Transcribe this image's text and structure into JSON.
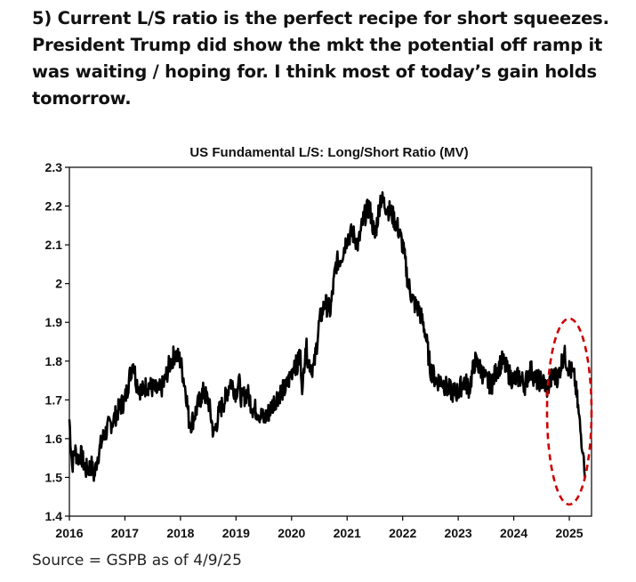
{
  "post": {
    "text": "5) Current L/S ratio is the perfect recipe for short squeezes. President Trump did show the mkt the potential off ramp it was waiting / hoping for. I think most of today’s gain holds tomorrow."
  },
  "source": "Source = GSPB as of 4/9/25",
  "colors": {
    "line": "#000000",
    "annotation": "#cc0000",
    "axis": "#000000"
  },
  "chart_data": {
    "type": "line",
    "title": "US Fundamental L/S: Long/Short Ratio (MV)",
    "xlabel": "",
    "ylabel": "",
    "xlim": [
      2016.0,
      2025.4
    ],
    "ylim": [
      1.4,
      2.3
    ],
    "x_ticks": [
      2016,
      2017,
      2018,
      2019,
      2020,
      2021,
      2022,
      2023,
      2024,
      2025
    ],
    "y_ticks": [
      1.4,
      1.5,
      1.6,
      1.7,
      1.8,
      1.9,
      2.0,
      2.1,
      2.2,
      2.3
    ],
    "y_tick_labels": [
      "1.4",
      "1.5",
      "1.6",
      "1.7",
      "1.8",
      "1.9",
      "2",
      "2.1",
      "2.2",
      "2.3"
    ],
    "grid": false,
    "series": [
      {
        "x": [
          2016.0,
          2016.05,
          2016.1,
          2016.15,
          2016.2,
          2016.3,
          2016.4,
          2016.45,
          2016.5,
          2016.6,
          2016.7,
          2016.8,
          2016.9,
          2017.0,
          2017.1,
          2017.15,
          2017.2,
          2017.3,
          2017.4,
          2017.5,
          2017.6,
          2017.7,
          2017.8,
          2017.9,
          2018.0,
          2018.1,
          2018.15,
          2018.2,
          2018.3,
          2018.4,
          2018.5,
          2018.6,
          2018.7,
          2018.8,
          2018.9,
          2019.0,
          2019.05,
          2019.1,
          2019.2,
          2019.3,
          2019.4,
          2019.5,
          2019.6,
          2019.7,
          2019.8,
          2019.9,
          2020.0,
          2020.05,
          2020.1,
          2020.15,
          2020.2,
          2020.25,
          2020.3,
          2020.4,
          2020.5,
          2020.6,
          2020.7,
          2020.8,
          2020.9,
          2021.0,
          2021.1,
          2021.2,
          2021.3,
          2021.4,
          2021.5,
          2021.6,
          2021.7,
          2021.8,
          2021.9,
          2022.0,
          2022.1,
          2022.2,
          2022.3,
          2022.4,
          2022.5,
          2022.6,
          2022.7,
          2022.8,
          2022.9,
          2023.0,
          2023.1,
          2023.2,
          2023.3,
          2023.4,
          2023.5,
          2023.6,
          2023.7,
          2023.8,
          2023.9,
          2024.0,
          2024.1,
          2024.2,
          2024.3,
          2024.4,
          2024.5,
          2024.6,
          2024.7,
          2024.8,
          2024.9,
          2025.0,
          2025.05,
          2025.1,
          2025.15,
          2025.2,
          2025.25,
          2025.28
        ],
        "y": [
          1.65,
          1.53,
          1.57,
          1.55,
          1.56,
          1.52,
          1.53,
          1.5,
          1.55,
          1.6,
          1.63,
          1.65,
          1.68,
          1.7,
          1.77,
          1.8,
          1.75,
          1.72,
          1.74,
          1.73,
          1.72,
          1.74,
          1.79,
          1.82,
          1.8,
          1.72,
          1.65,
          1.64,
          1.68,
          1.72,
          1.7,
          1.61,
          1.67,
          1.7,
          1.75,
          1.72,
          1.75,
          1.7,
          1.72,
          1.68,
          1.67,
          1.65,
          1.67,
          1.7,
          1.72,
          1.73,
          1.77,
          1.8,
          1.78,
          1.83,
          1.72,
          1.85,
          1.8,
          1.78,
          1.9,
          1.95,
          1.93,
          2.05,
          2.07,
          2.12,
          2.13,
          2.1,
          2.17,
          2.2,
          2.12,
          2.22,
          2.2,
          2.18,
          2.15,
          2.1,
          2.0,
          1.95,
          1.93,
          1.88,
          1.78,
          1.75,
          1.75,
          1.73,
          1.72,
          1.72,
          1.75,
          1.73,
          1.8,
          1.78,
          1.75,
          1.74,
          1.78,
          1.8,
          1.77,
          1.75,
          1.76,
          1.74,
          1.78,
          1.75,
          1.75,
          1.73,
          1.76,
          1.76,
          1.82,
          1.78,
          1.77,
          1.75,
          1.69,
          1.62,
          1.57,
          1.5
        ]
      }
    ],
    "annotations": [
      {
        "type": "dashed-ellipse",
        "x_range": [
          2024.6,
          2025.4
        ],
        "y_range": [
          1.43,
          1.91
        ]
      }
    ]
  }
}
